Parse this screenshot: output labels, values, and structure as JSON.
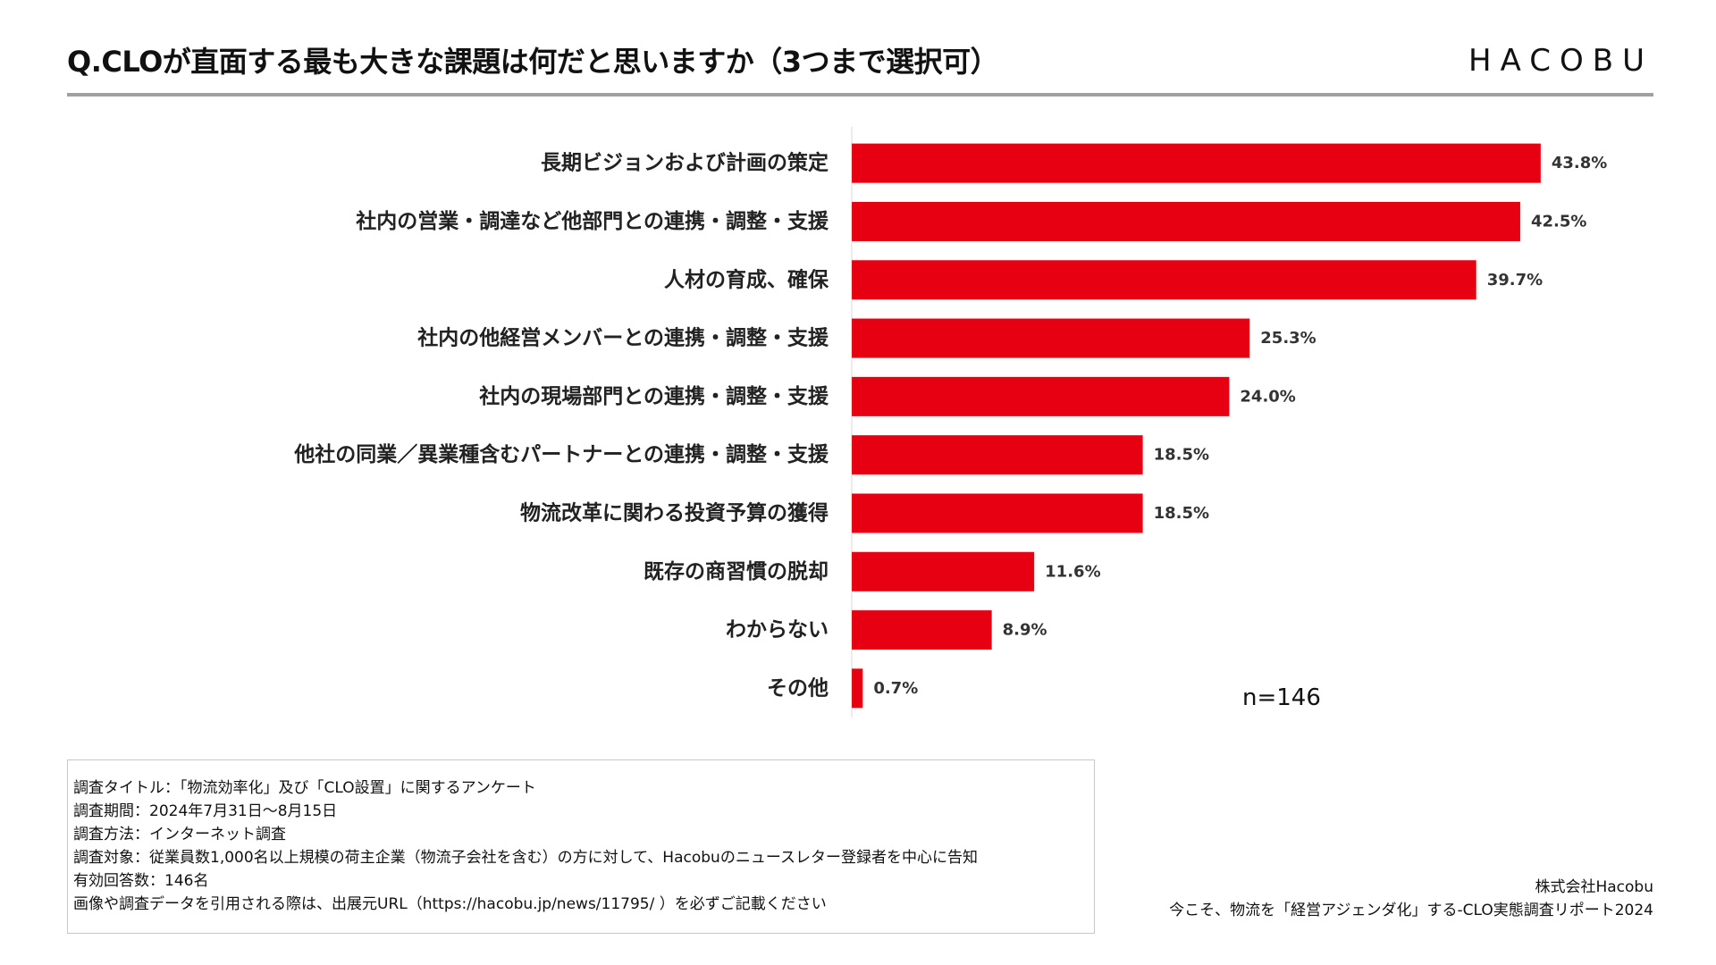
{
  "title": "Q.CLOが直面する最も大きな課題は何だと思いますか（3つまで選択可）",
  "logo": "HACOBU",
  "colors": {
    "bar": "#e60012",
    "rule": "#a0a0a0"
  },
  "chart_data": {
    "type": "bar",
    "orientation": "horizontal",
    "categories": [
      "長期ビジョンおよび計画の策定",
      "社内の営業・調達など他部門との連携・調整・支援",
      "人材の育成、確保",
      "社内の他経営メンバーとの連携・調整・支援",
      "社内の現場部門との連携・調整・支援",
      "他社の同業／異業種含むパートナーとの連携・調整・支援",
      "物流改革に関わる投資予算の獲得",
      "既存の商習慣の脱却",
      "わからない",
      "その他"
    ],
    "values": [
      43.8,
      42.5,
      39.7,
      25.3,
      24.0,
      18.5,
      18.5,
      11.6,
      8.9,
      0.7
    ],
    "value_labels": [
      "43.8%",
      "42.5%",
      "39.7%",
      "25.3%",
      "24.0%",
      "18.5%",
      "18.5%",
      "11.6%",
      "8.9%",
      "0.7%"
    ],
    "xlim": [
      0,
      45
    ],
    "note": "n=146",
    "grid": false,
    "legend": "none"
  },
  "survey": {
    "lines": [
      "調査タイトル：「物流効率化」及び「CLO設置」に関するアンケート",
      "調査期間：2024年7月31日〜8月15日",
      "調査方法：インターネット調査",
      "調査対象：従業員数1,000名以上規模の荷主企業（物流子会社を含む）の方に対して、Hacobuのニュースレター登録者を中心に告知",
      "有効回答数：146名",
      "画像や調査データを引用される際は、出展元URL（https://hacobu.jp/news/11795/ ）を必ずご記載ください"
    ]
  },
  "credit": {
    "company": "株式会社Hacobu",
    "report": "今こそ、物流を「経営アジェンダ化」する-CLO実態調査リポート2024"
  }
}
